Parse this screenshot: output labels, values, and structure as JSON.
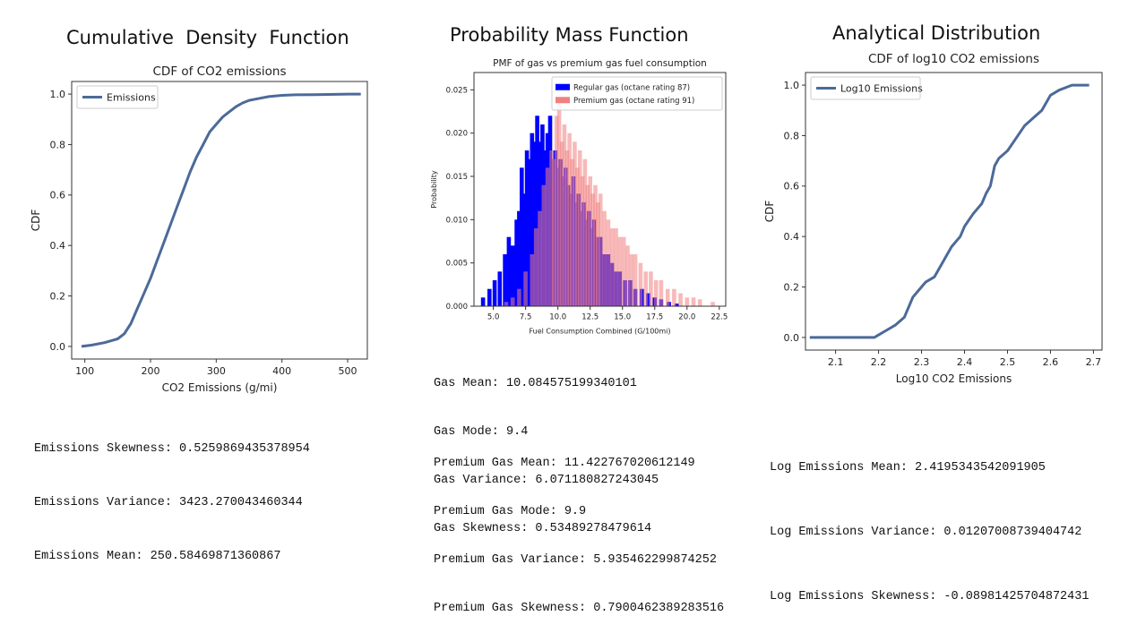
{
  "headings": {
    "cdf": "Cumulative  Density  Function",
    "pmf": "Probability Mass Function",
    "analytical": "Analytical Distribution"
  },
  "stats": {
    "cdf": [
      "Emissions Skewness: 0.5259869435378954",
      "Emissions Variance: 3423.270043460344",
      "Emissions Mean: 250.58469871360867"
    ],
    "gas": [
      "Gas Mean: 10.084575199340101",
      "Gas Mode: 9.4",
      "Gas Variance: 6.071180827243045",
      "Gas Skewness: 0.53489278479614"
    ],
    "premium": [
      "Premium Gas Mean: 11.422767020612149",
      "Premium Gas Mode: 9.9",
      "Premium Gas Variance: 5.935462299874252",
      "Premium Gas Skewness: 0.7900462389283516"
    ],
    "log": [
      "Log Emissions Mean: 2.4195343542091905",
      "Log Emissions Variance: 0.01207008739404742",
      "Log Emissions Skewness: -0.08981425704872431"
    ]
  },
  "chart_data": [
    {
      "type": "line",
      "title": "CDF of CO2 emissions",
      "xlabel": "CO2 Emissions (g/mi)",
      "ylabel": "CDF",
      "xlim": [
        80,
        530
      ],
      "ylim": [
        -0.05,
        1.05
      ],
      "xticks": [
        "100",
        "200",
        "300",
        "400",
        "500"
      ],
      "yticks": [
        "0.0",
        "0.2",
        "0.4",
        "0.6",
        "0.8",
        "1.0"
      ],
      "legend": "top-left",
      "grid": false,
      "color": "#4c6a99",
      "series": [
        {
          "name": "Emissions",
          "x": [
            95,
            110,
            130,
            150,
            160,
            170,
            180,
            190,
            200,
            210,
            220,
            230,
            240,
            250,
            260,
            270,
            280,
            290,
            300,
            310,
            320,
            330,
            340,
            350,
            360,
            380,
            400,
            420,
            450,
            480,
            500,
            520
          ],
          "y": [
            0.0,
            0.005,
            0.015,
            0.03,
            0.05,
            0.09,
            0.15,
            0.21,
            0.27,
            0.34,
            0.41,
            0.48,
            0.55,
            0.62,
            0.69,
            0.75,
            0.8,
            0.85,
            0.88,
            0.91,
            0.93,
            0.95,
            0.965,
            0.975,
            0.98,
            0.99,
            0.995,
            0.997,
            0.998,
            0.999,
            1.0,
            1.0
          ]
        }
      ]
    },
    {
      "type": "bar",
      "title": "PMF of gas vs premium gas fuel consumption",
      "xlabel": "Fuel Consumption Combined (G/100mi)",
      "ylabel": "Probability",
      "xlim": [
        3.5,
        23.0
      ],
      "ylim": [
        0,
        0.027
      ],
      "xticks": [
        "5.0",
        "7.5",
        "10.0",
        "12.5",
        "15.0",
        "17.5",
        "20.0",
        "22.5"
      ],
      "yticks": [
        "0.000",
        "0.005",
        "0.010",
        "0.015",
        "0.020",
        "0.025"
      ],
      "legend": "top-right",
      "grid": false,
      "series": [
        {
          "name": "Regular gas (octane rating 87)",
          "color": "#0000ff",
          "x": [
            4.2,
            4.7,
            5.1,
            5.5,
            5.9,
            6.2,
            6.5,
            6.8,
            7.0,
            7.2,
            7.4,
            7.6,
            7.8,
            8.0,
            8.2,
            8.4,
            8.6,
            8.8,
            9.0,
            9.2,
            9.4,
            9.6,
            9.8,
            10.0,
            10.2,
            10.4,
            10.6,
            10.8,
            11.0,
            11.2,
            11.4,
            11.6,
            11.8,
            12.0,
            12.2,
            12.4,
            12.6,
            12.8,
            13.0,
            13.3,
            13.6,
            13.9,
            14.2,
            14.5,
            14.8,
            15.2,
            15.6,
            16.0,
            16.5,
            17.0,
            17.5,
            18.0,
            18.6,
            19.2
          ],
          "y": [
            0.001,
            0.002,
            0.003,
            0.004,
            0.006,
            0.008,
            0.007,
            0.01,
            0.011,
            0.016,
            0.013,
            0.018,
            0.017,
            0.02,
            0.019,
            0.022,
            0.019,
            0.021,
            0.018,
            0.02,
            0.022,
            0.017,
            0.018,
            0.016,
            0.017,
            0.015,
            0.016,
            0.014,
            0.013,
            0.015,
            0.012,
            0.013,
            0.011,
            0.012,
            0.01,
            0.011,
            0.009,
            0.01,
            0.008,
            0.008,
            0.006,
            0.006,
            0.005,
            0.004,
            0.004,
            0.003,
            0.003,
            0.002,
            0.002,
            0.0015,
            0.001,
            0.0008,
            0.0005,
            0.0003
          ]
        },
        {
          "name": "Premium gas (octane rating 91)",
          "color": "#f08080",
          "x": [
            6.0,
            6.5,
            7.0,
            7.5,
            8.0,
            8.3,
            8.6,
            8.9,
            9.2,
            9.5,
            9.7,
            9.9,
            10.1,
            10.3,
            10.5,
            10.7,
            10.9,
            11.1,
            11.3,
            11.5,
            11.7,
            11.9,
            12.1,
            12.3,
            12.5,
            12.7,
            12.9,
            13.1,
            13.3,
            13.6,
            13.9,
            14.2,
            14.5,
            14.8,
            15.1,
            15.4,
            15.7,
            16.0,
            16.4,
            16.8,
            17.2,
            17.6,
            18.0,
            18.5,
            19.0,
            19.5,
            20.0,
            20.5,
            21.0,
            22.0
          ],
          "y": [
            0.0005,
            0.001,
            0.002,
            0.004,
            0.006,
            0.009,
            0.011,
            0.014,
            0.016,
            0.018,
            0.017,
            0.022,
            0.024,
            0.019,
            0.021,
            0.018,
            0.02,
            0.017,
            0.019,
            0.016,
            0.018,
            0.015,
            0.017,
            0.014,
            0.015,
            0.013,
            0.014,
            0.012,
            0.013,
            0.011,
            0.01,
            0.009,
            0.009,
            0.008,
            0.008,
            0.007,
            0.006,
            0.006,
            0.005,
            0.004,
            0.004,
            0.003,
            0.003,
            0.002,
            0.002,
            0.0015,
            0.001,
            0.001,
            0.0008,
            0.0005
          ]
        }
      ]
    },
    {
      "type": "line",
      "title": "CDF of log10 CO2 emissions",
      "xlabel": "Log10 CO2 Emissions",
      "ylabel": "CDF",
      "xlim": [
        2.03,
        2.72
      ],
      "ylim": [
        -0.05,
        1.05
      ],
      "xticks": [
        "2.1",
        "2.2",
        "2.3",
        "2.4",
        "2.5",
        "2.6",
        "2.7"
      ],
      "yticks": [
        "0.0",
        "0.2",
        "0.4",
        "0.6",
        "0.8",
        "1.0"
      ],
      "legend": "top-left",
      "grid": false,
      "color": "#4c6a99",
      "series": [
        {
          "name": "Log10 Emissions",
          "x": [
            2.04,
            2.1,
            2.15,
            2.19,
            2.2,
            2.22,
            2.24,
            2.26,
            2.27,
            2.28,
            2.3,
            2.31,
            2.33,
            2.35,
            2.36,
            2.37,
            2.39,
            2.4,
            2.42,
            2.44,
            2.45,
            2.46,
            2.47,
            2.48,
            2.5,
            2.52,
            2.54,
            2.56,
            2.58,
            2.6,
            2.62,
            2.65,
            2.69
          ],
          "y": [
            0.0,
            0.0,
            0.0,
            0.0,
            0.01,
            0.03,
            0.05,
            0.08,
            0.12,
            0.16,
            0.2,
            0.22,
            0.24,
            0.3,
            0.33,
            0.36,
            0.4,
            0.44,
            0.49,
            0.53,
            0.57,
            0.6,
            0.68,
            0.71,
            0.74,
            0.79,
            0.84,
            0.87,
            0.9,
            0.96,
            0.98,
            1.0,
            1.0
          ]
        }
      ]
    }
  ]
}
